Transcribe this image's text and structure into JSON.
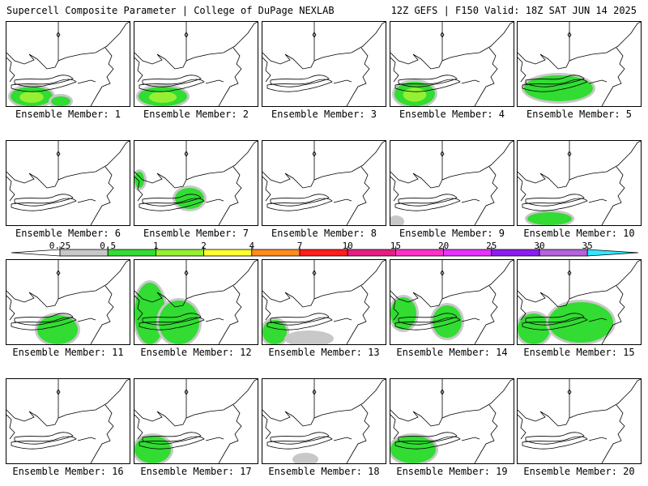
{
  "header": {
    "left_title": "Supercell Composite Parameter | College of DuPage NEXLAB",
    "right_title": "12Z GEFS | F150 Valid: 18Z SAT JUN 14 2025"
  },
  "panel_label_prefix": "Ensemble Member: ",
  "members": [
    {
      "id": "1",
      "label": "Ensemble Member: 1",
      "blobs": [
        {
          "x": 5,
          "y": 80,
          "w": 52,
          "h": 24,
          "lvl": 2
        },
        {
          "x": 55,
          "y": 92,
          "w": 24,
          "h": 12,
          "lvl": 1
        }
      ]
    },
    {
      "id": "2",
      "label": "Ensemble Member: 2",
      "blobs": [
        {
          "x": 5,
          "y": 80,
          "w": 60,
          "h": 24,
          "lvl": 2
        }
      ]
    },
    {
      "id": "3",
      "label": "Ensemble Member: 3",
      "blobs": []
    },
    {
      "id": "4",
      "label": "Ensemble Member: 4",
      "blobs": [
        {
          "x": 5,
          "y": 74,
          "w": 50,
          "h": 30,
          "lvl": 2
        }
      ]
    },
    {
      "id": "5",
      "label": "Ensemble Member: 5",
      "blobs": [
        {
          "x": 8,
          "y": 66,
          "w": 85,
          "h": 32,
          "lvl": 1
        }
      ]
    },
    {
      "id": "6",
      "label": "Ensemble Member: 6",
      "blobs": []
    },
    {
      "id": "7",
      "label": "Ensemble Member: 7",
      "blobs": [
        {
          "x": 0,
          "y": 38,
          "w": 12,
          "h": 20,
          "lvl": 1
        },
        {
          "x": 50,
          "y": 58,
          "w": 36,
          "h": 26,
          "lvl": 1
        }
      ]
    },
    {
      "id": "8",
      "label": "Ensemble Member: 8",
      "blobs": []
    },
    {
      "id": "9",
      "label": "Ensemble Member: 9",
      "blobs": [
        {
          "x": 0,
          "y": 95,
          "w": 14,
          "h": 9,
          "lvl": 0
        }
      ]
    },
    {
      "id": "10",
      "label": "Ensemble Member: 10",
      "blobs": [
        {
          "x": 12,
          "y": 88,
          "w": 55,
          "h": 16,
          "lvl": 1
        }
      ]
    },
    {
      "id": "11",
      "label": "Ensemble Member: 11",
      "blobs": [
        {
          "x": 38,
          "y": 68,
          "w": 50,
          "h": 36,
          "lvl": 1
        }
      ]
    },
    {
      "id": "12",
      "label": "Ensemble Member: 12",
      "blobs": [
        {
          "x": 0,
          "y": 28,
          "w": 38,
          "h": 76,
          "lvl": 1
        },
        {
          "x": 30,
          "y": 50,
          "w": 50,
          "h": 54,
          "lvl": 1
        }
      ]
    },
    {
      "id": "13",
      "label": "Ensemble Member: 13",
      "blobs": [
        {
          "x": 0,
          "y": 74,
          "w": 30,
          "h": 30,
          "lvl": 1
        },
        {
          "x": 30,
          "y": 90,
          "w": 55,
          "h": 14,
          "lvl": 0
        }
      ]
    },
    {
      "id": "14",
      "label": "Ensemble Member: 14",
      "blobs": [
        {
          "x": 0,
          "y": 46,
          "w": 32,
          "h": 40,
          "lvl": 1
        },
        {
          "x": 52,
          "y": 56,
          "w": 36,
          "h": 40,
          "lvl": 1
        }
      ]
    },
    {
      "id": "15",
      "label": "Ensemble Member: 15",
      "blobs": [
        {
          "x": 0,
          "y": 66,
          "w": 40,
          "h": 38,
          "lvl": 1
        },
        {
          "x": 38,
          "y": 52,
          "w": 80,
          "h": 50,
          "lvl": 1
        }
      ]
    },
    {
      "id": "16",
      "label": "Ensemble Member: 16",
      "blobs": []
    },
    {
      "id": "17",
      "label": "Ensemble Member: 17",
      "blobs": [
        {
          "x": 0,
          "y": 70,
          "w": 45,
          "h": 34,
          "lvl": 1
        }
      ]
    },
    {
      "id": "18",
      "label": "Ensemble Member: 18",
      "blobs": [
        {
          "x": 40,
          "y": 94,
          "w": 26,
          "h": 10,
          "lvl": 0
        }
      ]
    },
    {
      "id": "19",
      "label": "Ensemble Member: 19",
      "blobs": [
        {
          "x": 0,
          "y": 70,
          "w": 56,
          "h": 34,
          "lvl": 1
        }
      ]
    },
    {
      "id": "20",
      "label": "Ensemble Member: 20",
      "blobs": []
    }
  ],
  "colorbar": {
    "levels": [
      "0.25",
      "0.5",
      "1",
      "2",
      "4",
      "7",
      "10",
      "15",
      "20",
      "25",
      "30",
      "35"
    ],
    "colors": [
      "#c8c8c8",
      "#32dc32",
      "#96f032",
      "#ffff32",
      "#ff8c1e",
      "#ff1e1e",
      "#e61e82",
      "#ff32c8",
      "#e632ff",
      "#8c1ef0",
      "#b464dc",
      "#32e6ff"
    ]
  },
  "shade_colors": {
    "lvl0": "#c8c8c8",
    "lvl1": "#32dc32",
    "lvl2": "#96f032"
  }
}
